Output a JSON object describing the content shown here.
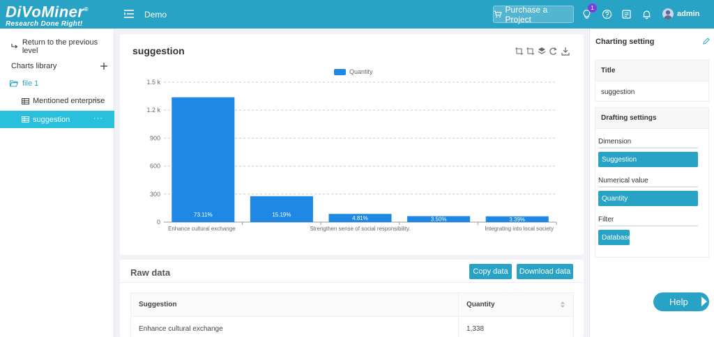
{
  "brand": {
    "name": "DiVoMiner",
    "reg": "®",
    "tagline": "Research Done Right!"
  },
  "topbar": {
    "title": "Demo",
    "purchase_label": "Purchase a Project",
    "notification_count": "1",
    "username": "admin"
  },
  "sidebar": {
    "back_label": "Return to the previous level",
    "library_label": "Charts library",
    "folder_label": "file 1",
    "items": [
      {
        "label": "Mentioned enterprise",
        "more": "···"
      },
      {
        "label": "suggestion",
        "more": "···"
      }
    ]
  },
  "chart_card": {
    "title": "suggestion"
  },
  "chart_data": {
    "type": "bar",
    "legend": [
      "Quantity"
    ],
    "categories": [
      "Enhance cultural exchange",
      "",
      "Strengthen sense of social responsibility.",
      "",
      "Integrating into local society"
    ],
    "values": [
      1338,
      278,
      88,
      64,
      62
    ],
    "bar_labels": [
      "73.11%",
      "15.19%",
      "4.81%",
      "3.50%",
      "3.39%"
    ],
    "yticks": [
      "0",
      "300",
      "600",
      "900",
      "1.2 k",
      "1.5 k"
    ],
    "ylim": [
      0,
      1500
    ],
    "grid": true,
    "bar_color": "#1f88e5"
  },
  "raw_data": {
    "title": "Raw data",
    "copy_label": "Copy data",
    "download_label": "Download data",
    "columns": [
      "Suggestion",
      "Quantity"
    ],
    "rows": [
      {
        "suggestion": "Enhance cultural exchange",
        "quantity": "1,338"
      }
    ]
  },
  "right_panel": {
    "title": "Charting setting",
    "title_box": {
      "head": "Title",
      "value": "suggestion"
    },
    "drafting": {
      "head": "Drafting settings",
      "dimension_label": "Dimension",
      "dimension_value": "Suggestion",
      "numerical_label": "Numerical value",
      "numerical_value": "Quantity",
      "filter_label": "Filter",
      "filter_value": "Database"
    }
  },
  "help_label": "Help",
  "colors": {
    "primary": "#28a3c5",
    "active": "#28c0dd",
    "bar": "#1f88e5",
    "badge": "#7b3fd6"
  }
}
